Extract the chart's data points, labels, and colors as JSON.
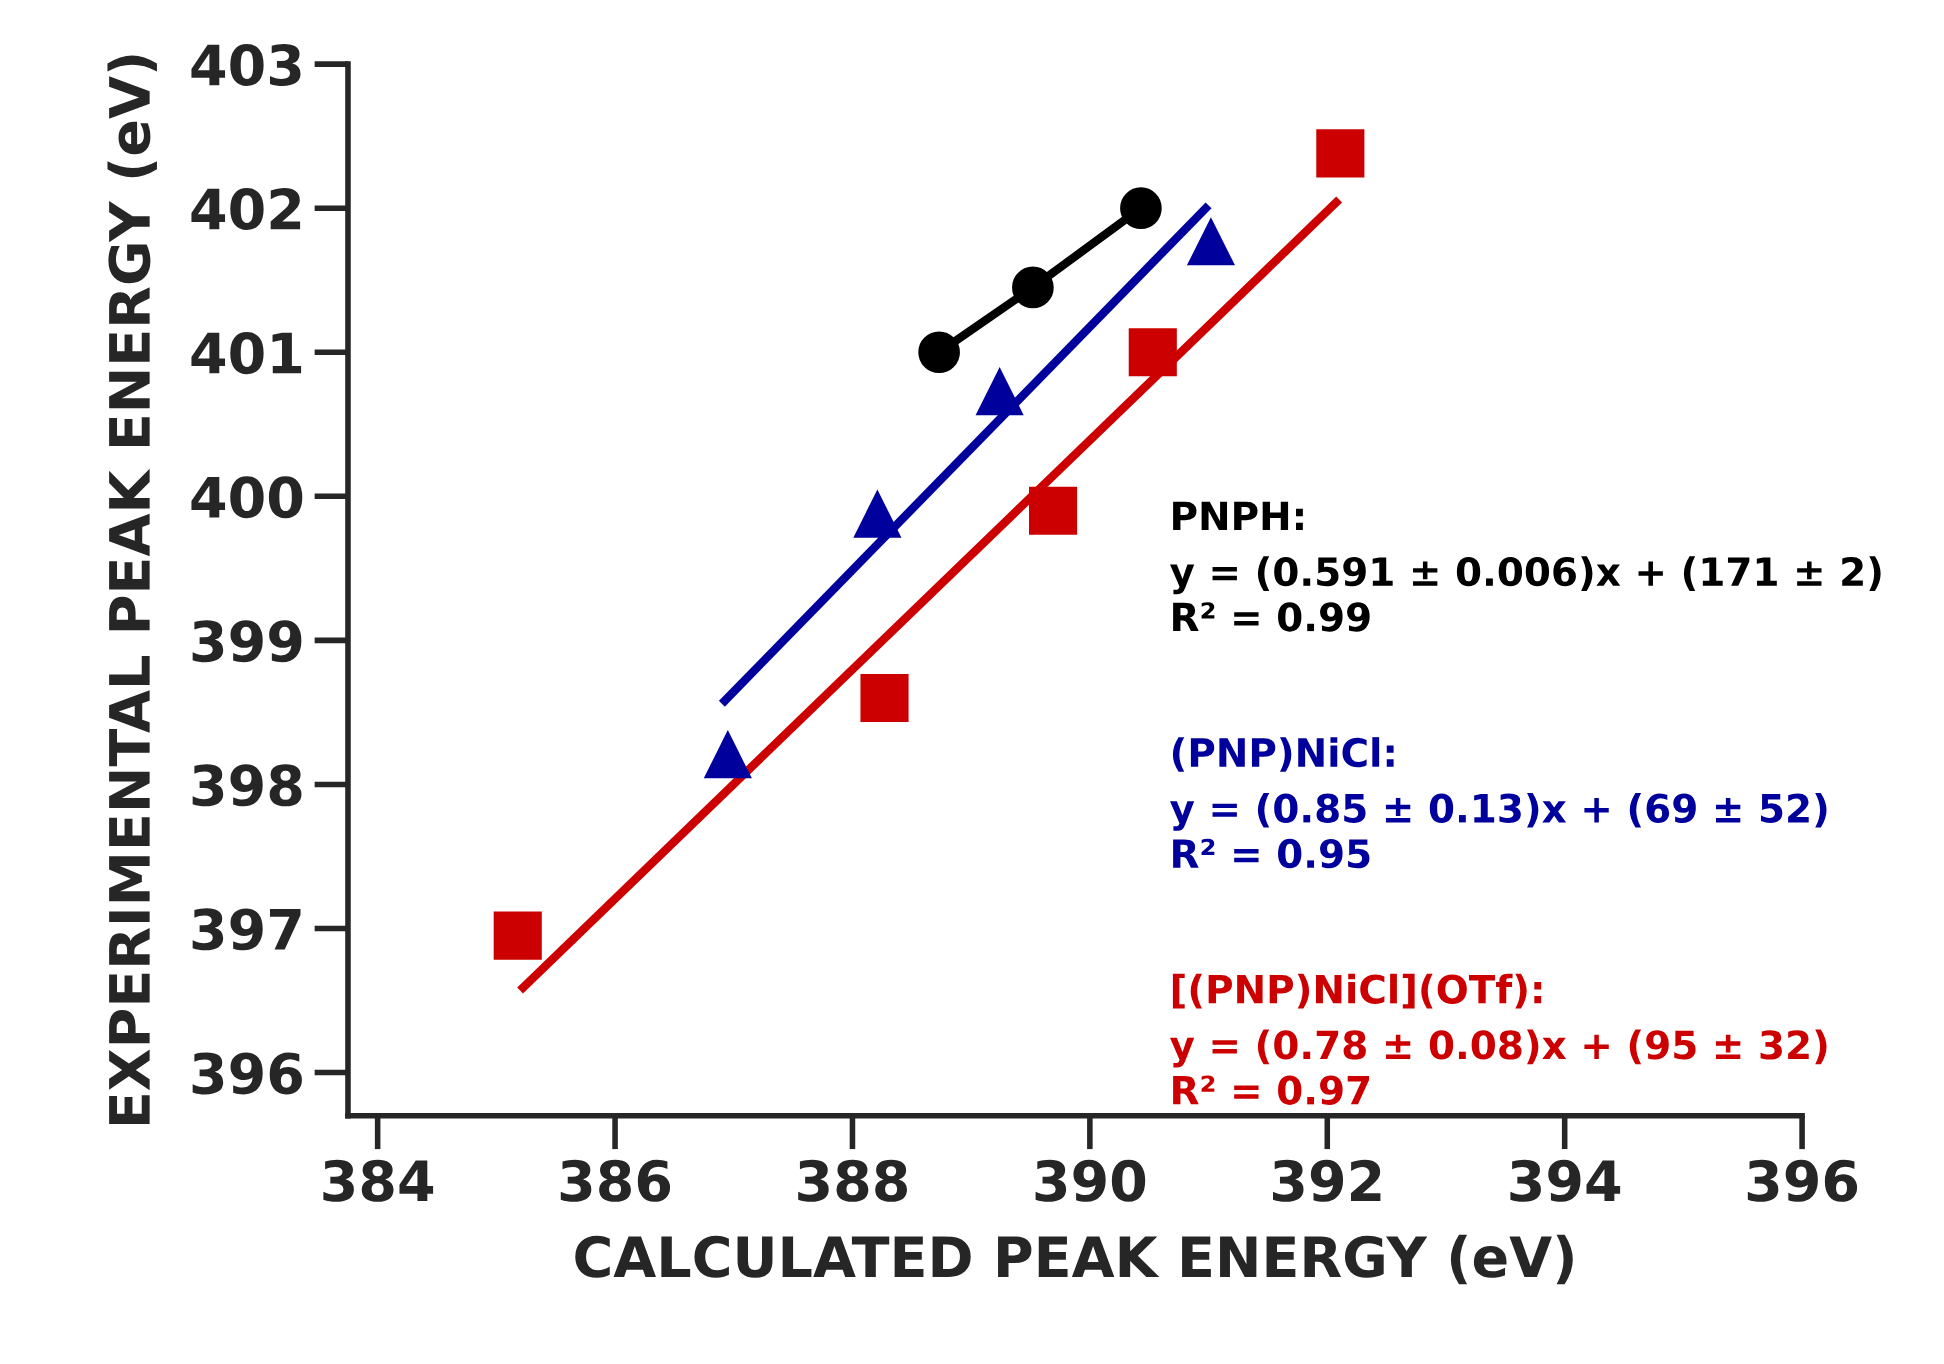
{
  "chart_data": {
    "type": "scatter",
    "xlabel": "CALCULATED PEAK ENERGY (eV)",
    "ylabel": "EXPERIMENTAL PEAK ENERGY (eV)",
    "xlim": [
      383.75,
      396
    ],
    "xticks": [
      384,
      386,
      388,
      390,
      392,
      394,
      396
    ],
    "ylim": [
      395.7,
      403
    ],
    "yticks": [
      396,
      397,
      398,
      399,
      400,
      401,
      402,
      403
    ],
    "grid": false,
    "legend": false,
    "series": [
      {
        "type": "line",
        "name": "PNPH:",
        "color": "#000000",
        "marker": "circle",
        "x": [
          388.73,
          389.52,
          390.43
        ],
        "values": [
          401.0,
          401.45,
          402.0
        ]
      },
      {
        "name": "(PNP)NiCl:",
        "color": "#00009c",
        "marker": "triangle",
        "x": [
          386.95,
          388.21,
          389.24,
          391.02
        ],
        "values": [
          398.21,
          399.88,
          400.73,
          401.77
        ]
      },
      {
        "name": "[(PNP)NiCl](OTf):",
        "color": "#cc0000",
        "marker": "square",
        "x": [
          385.18,
          388.27,
          389.69,
          390.53,
          392.11
        ],
        "values": [
          396.95,
          398.6,
          399.9,
          401.0,
          402.38
        ]
      },
      {
        "type": "line",
        "color": "#00009c",
        "marker": "none",
        "x": [
          386.9,
          391.0
        ],
        "values": [
          398.56,
          402.02
        ]
      },
      {
        "type": "line",
        "color": "#cc0000",
        "marker": "none",
        "x": [
          385.2,
          392.1
        ],
        "values": [
          396.57,
          402.06
        ]
      }
    ],
    "annotations": [
      "y = (0.591 ± 0.006)x + (171 ± 2)\nR² = 0.99",
      "y = (0.85 ± 0.13)x + (69 ± 52)\nR² = 0.95",
      "y = (0.78 ± 0.08)x + (95 ± 32)\nR² = 0.97"
    ]
  }
}
